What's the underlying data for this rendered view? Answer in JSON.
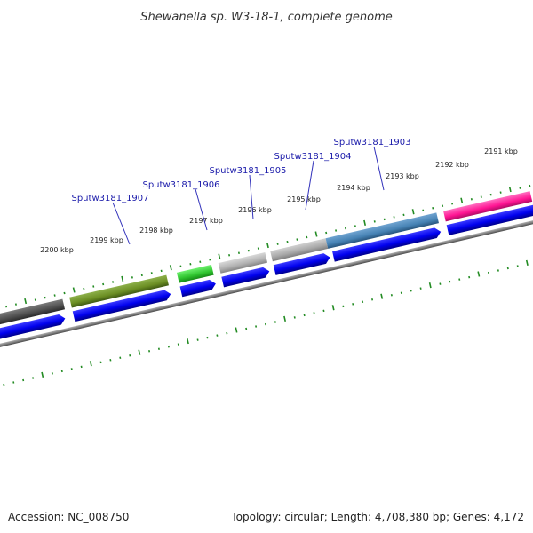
{
  "title": "Shewanella sp. W3-18-1, complete genome",
  "footer": {
    "accession": "Accession: NC_008750",
    "summary": "Topology: circular; Length: 4,708,380 bp; Genes: 4,172"
  },
  "tick_labels": [
    "2200 kbp",
    "2199 kbp",
    "2198 kbp",
    "2197 kbp",
    "2196 kbp",
    "2195 kbp",
    "2194 kbp",
    "2193 kbp",
    "2192 kbp",
    "2191 kbp"
  ],
  "gene_labels": [
    "Sputw3181_1907",
    "Sputw3181_1906",
    "Sputw3181_1905",
    "Sputw3181_1904",
    "Sputw3181_1903"
  ],
  "colors": {
    "backbone": "#808080",
    "cds": "#0000ee",
    "tick": "#228b22",
    "label_line": "#3333bb",
    "features": [
      "#555555",
      "#6b8e23",
      "#33cc33",
      "#b0b0b0",
      "#a8a8a8",
      "#4682b4",
      "#ff1493"
    ]
  }
}
